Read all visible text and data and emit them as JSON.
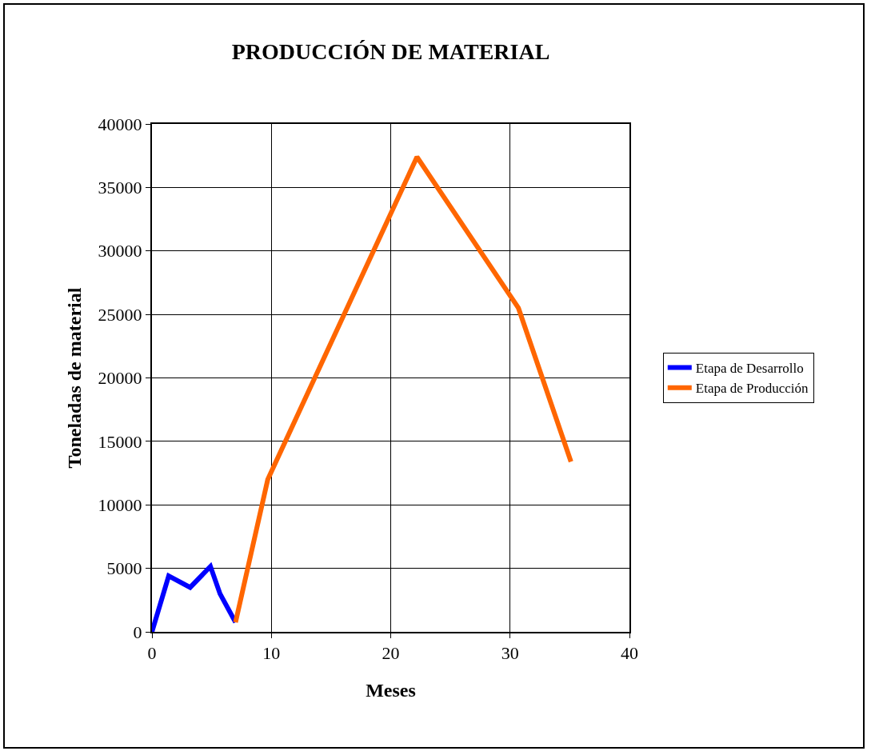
{
  "chart_data": {
    "type": "line",
    "title": "PRODUCCIÓN DE MATERIAL",
    "xlabel": "Meses",
    "ylabel": "Toneladas de material",
    "series": [
      {
        "name": "Etapa de Desarrollo",
        "color": "#0000ff",
        "x": [
          0,
          1.4,
          3.2,
          4.9,
          5.7,
          7.0
        ],
        "values": [
          0,
          4400,
          3500,
          5150,
          3000,
          750
        ]
      },
      {
        "name": "Etapa de Producción",
        "color": "#ff6600",
        "x": [
          7.0,
          9.7,
          22.2,
          30.7,
          35.1
        ],
        "values": [
          750,
          12000,
          37400,
          25500,
          13400
        ]
      }
    ],
    "xlim": [
      0,
      40
    ],
    "xticks": [
      0,
      10,
      20,
      30,
      40
    ],
    "ylim": [
      0,
      40000
    ],
    "yticks": [
      0,
      5000,
      10000,
      15000,
      20000,
      25000,
      30000,
      35000,
      40000
    ],
    "grid": true,
    "legend": "right",
    "marker": "none",
    "line_style": "solid"
  }
}
